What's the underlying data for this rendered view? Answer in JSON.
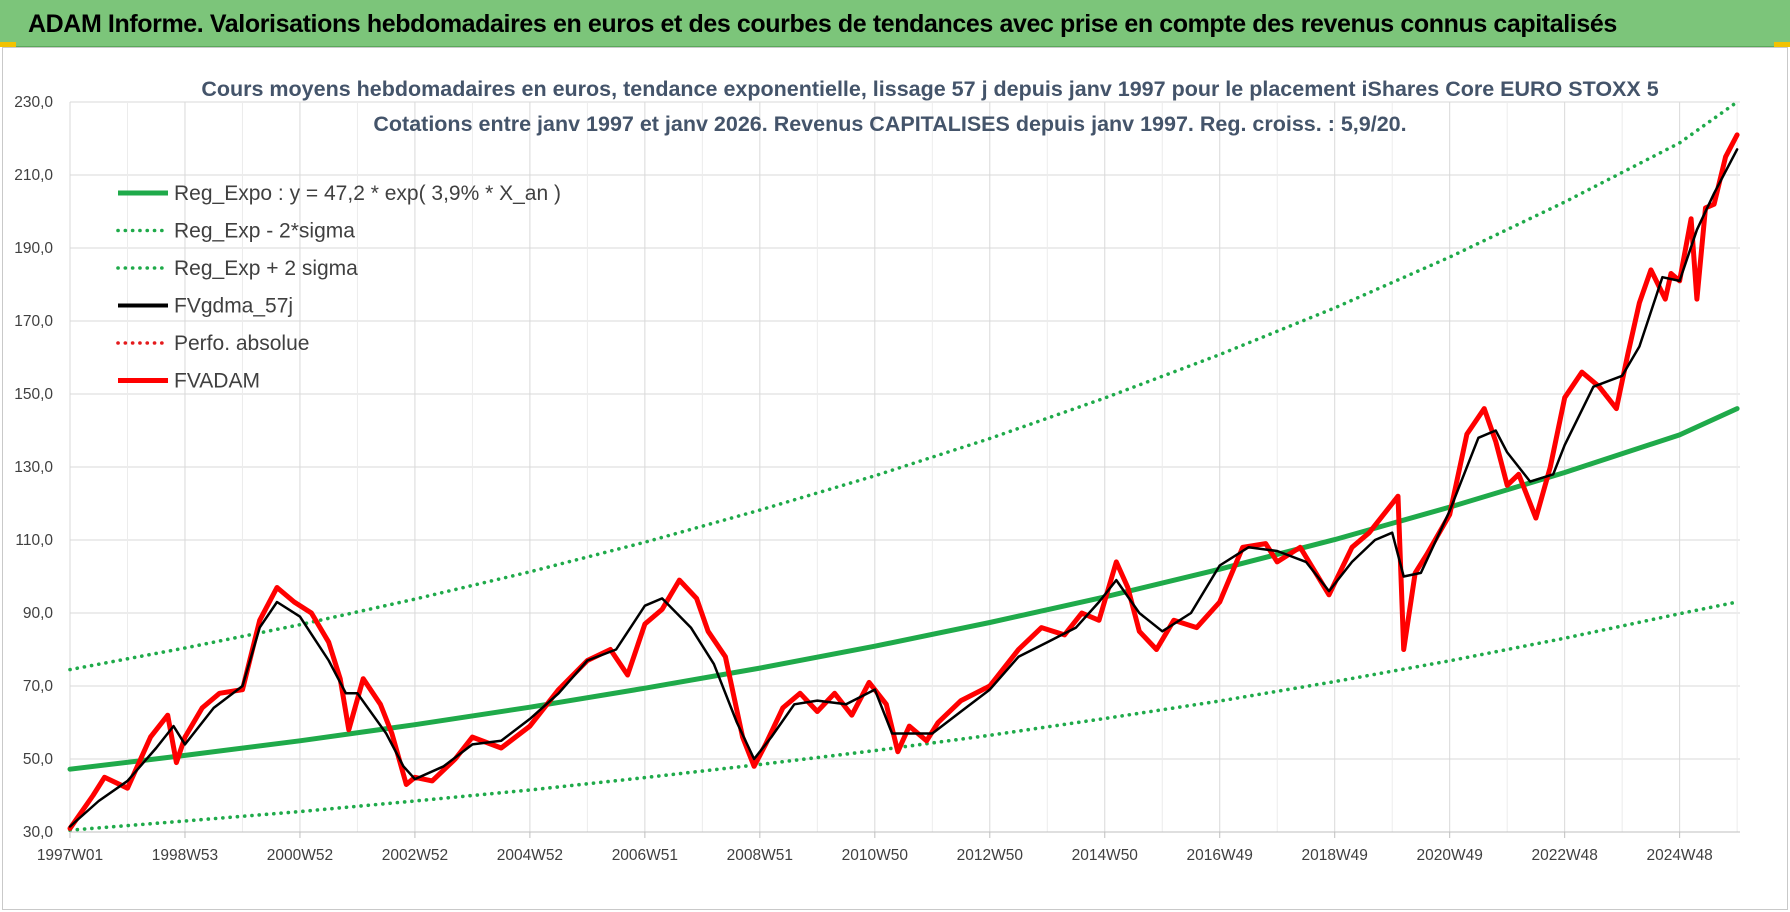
{
  "banner": {
    "title": "ADAM Informe. Valorisations hebdomadaires en euros et des courbes de tendances avec prise en compte des revenus connus capitalisés"
  },
  "chart_data": {
    "type": "line",
    "title_lines": [
      "Cours moyens hebdomadaires en euros, tendance exponentielle, lissage 57 j depuis janv 1997 pour le placement iShares Core EURO STOXX 5",
      "Cotations entre janv 1997 et janv 2026. Revenus CAPITALISES depuis janv 1997. Reg. croiss. : 5,9/20."
    ],
    "ylim": [
      30,
      230
    ],
    "y_ticks": [
      "30,0",
      "50,0",
      "70,0",
      "90,0",
      "110,0",
      "130,0",
      "150,0",
      "170,0",
      "190,0",
      "210,0",
      "230,0"
    ],
    "x_range_years": [
      1997.0,
      2026.05
    ],
    "x_ticks": [
      {
        "label": "1997W01",
        "year": 1997.0
      },
      {
        "label": "1998W53",
        "year": 1999.0
      },
      {
        "label": "2000W52",
        "year": 2001.0
      },
      {
        "label": "2002W52",
        "year": 2003.0
      },
      {
        "label": "2004W52",
        "year": 2005.0
      },
      {
        "label": "2006W51",
        "year": 2007.0
      },
      {
        "label": "2008W51",
        "year": 2009.0
      },
      {
        "label": "2010W50",
        "year": 2011.0
      },
      {
        "label": "2012W50",
        "year": 2013.0
      },
      {
        "label": "2014W50",
        "year": 2015.0
      },
      {
        "label": "2016W49",
        "year": 2017.0
      },
      {
        "label": "2018W49",
        "year": 2019.0
      },
      {
        "label": "2020W49",
        "year": 2021.0
      },
      {
        "label": "2022W48",
        "year": 2023.0
      },
      {
        "label": "2024W48",
        "year": 2025.0
      }
    ],
    "grid": true,
    "legend_position": "top-left",
    "series": [
      {
        "name": "Reg_Expo : y = 47,2 * exp( 3,9% *  X_an )",
        "color": "#1faa4a",
        "style": "solid-thick",
        "x": [
          1997,
          1999,
          2001,
          2003,
          2005,
          2007,
          2009,
          2011,
          2013,
          2015,
          2017,
          2019,
          2021,
          2023,
          2025,
          2026
        ],
        "y": [
          47.2,
          51.0,
          55.0,
          59.4,
          64.2,
          69.4,
          74.9,
          80.9,
          87.4,
          94.4,
          102.0,
          110.1,
          119.0,
          128.5,
          138.8,
          146.0
        ]
      },
      {
        "name": "Reg_Exp - 2*sigma",
        "color": "#1faa4a",
        "style": "dotted",
        "x": [
          1997,
          1999,
          2001,
          2003,
          2005,
          2007,
          2009,
          2011,
          2013,
          2015,
          2017,
          2019,
          2021,
          2023,
          2025,
          2026
        ],
        "y": [
          30.5,
          33.0,
          35.6,
          38.5,
          41.5,
          44.9,
          48.5,
          52.3,
          56.5,
          61.1,
          65.9,
          71.2,
          76.9,
          83.1,
          89.8,
          93.0
        ]
      },
      {
        "name": "Reg_Exp + 2 sigma",
        "color": "#1faa4a",
        "style": "dotted",
        "x": [
          1997,
          1999,
          2001,
          2003,
          2005,
          2007,
          2009,
          2011,
          2013,
          2015,
          2017,
          2019,
          2021,
          2023,
          2025,
          2026
        ],
        "y": [
          74.5,
          80.4,
          86.8,
          93.8,
          101.3,
          109.4,
          118.2,
          127.6,
          137.8,
          148.9,
          160.8,
          173.6,
          187.5,
          202.6,
          218.8,
          230.0
        ]
      },
      {
        "name": "FVgdma_57j",
        "color": "#000000",
        "style": "solid",
        "x": [
          1997.0,
          1997.5,
          1998.0,
          1998.5,
          1998.8,
          1999.0,
          1999.5,
          2000.0,
          2000.3,
          2000.6,
          2001.0,
          2001.5,
          2001.8,
          2002.0,
          2002.5,
          2002.8,
          2003.0,
          2003.5,
          2004.0,
          2004.5,
          2005.0,
          2005.5,
          2006.0,
          2006.5,
          2007.0,
          2007.3,
          2007.8,
          2008.2,
          2008.6,
          2008.9,
          2009.2,
          2009.6,
          2010.0,
          2010.5,
          2011.0,
          2011.3,
          2011.7,
          2012.0,
          2012.5,
          2013.0,
          2013.5,
          2014.0,
          2014.5,
          2014.9,
          2015.2,
          2015.6,
          2016.0,
          2016.5,
          2017.0,
          2017.5,
          2018.0,
          2018.5,
          2018.9,
          2019.3,
          2019.7,
          2020.0,
          2020.2,
          2020.5,
          2021.0,
          2021.5,
          2021.8,
          2022.0,
          2022.4,
          2022.8,
          2023.0,
          2023.5,
          2024.0,
          2024.3,
          2024.7,
          2025.0,
          2025.3,
          2025.6,
          2026.0
        ],
        "y": [
          31.5,
          38.5,
          44.0,
          53.0,
          59.0,
          54.0,
          64.0,
          70.0,
          86.0,
          93.0,
          89.0,
          77.0,
          68.0,
          68.0,
          57.0,
          48.0,
          44.5,
          48.0,
          54.0,
          55.0,
          61.0,
          68.0,
          77.0,
          80.0,
          92.0,
          94.0,
          86.0,
          76.0,
          60.0,
          50.0,
          56.0,
          65.0,
          66.0,
          65.0,
          69.0,
          57.0,
          57.0,
          57.0,
          63.0,
          69.0,
          78.0,
          82.0,
          86.0,
          93.0,
          99.0,
          90.0,
          85.0,
          90.0,
          103.0,
          108.0,
          107.0,
          104.0,
          96.0,
          104.0,
          110.0,
          112.0,
          100.0,
          101.0,
          118.0,
          138.0,
          140.0,
          134.0,
          126.0,
          128.0,
          136.0,
          152.0,
          155.0,
          163.0,
          182.0,
          181.0,
          195.0,
          205.0,
          217.0
        ]
      },
      {
        "name": "Perfo. absolue",
        "color": "#e41a1c",
        "style": "dotted",
        "x": [],
        "y": []
      },
      {
        "name": "FVADAM",
        "color": "#ff0000",
        "style": "solid-thick",
        "x": [
          1997.0,
          1997.4,
          1997.6,
          1998.0,
          1998.4,
          1998.7,
          1998.85,
          1999.0,
          1999.3,
          1999.6,
          2000.0,
          2000.3,
          2000.6,
          2000.9,
          2001.2,
          2001.5,
          2001.7,
          2001.85,
          2002.1,
          2002.4,
          2002.6,
          2002.85,
          2003.0,
          2003.3,
          2003.7,
          2004.0,
          2004.5,
          2005.0,
          2005.5,
          2006.0,
          2006.4,
          2006.7,
          2007.0,
          2007.3,
          2007.6,
          2007.9,
          2008.1,
          2008.4,
          2008.7,
          2008.9,
          2009.1,
          2009.4,
          2009.7,
          2010.0,
          2010.3,
          2010.6,
          2010.9,
          2011.2,
          2011.4,
          2011.6,
          2011.9,
          2012.1,
          2012.5,
          2013.0,
          2013.5,
          2013.9,
          2014.3,
          2014.6,
          2014.9,
          2015.2,
          2015.4,
          2015.6,
          2015.9,
          2016.2,
          2016.6,
          2017.0,
          2017.4,
          2017.8,
          2018.0,
          2018.4,
          2018.9,
          2019.3,
          2019.6,
          2019.9,
          2020.1,
          2020.2,
          2020.4,
          2020.6,
          2021.0,
          2021.3,
          2021.6,
          2021.8,
          2022.0,
          2022.2,
          2022.5,
          2022.75,
          2023.0,
          2023.3,
          2023.6,
          2023.9,
          2024.1,
          2024.3,
          2024.5,
          2024.75,
          2024.85,
          2025.0,
          2025.2,
          2025.3,
          2025.45,
          2025.6,
          2025.8,
          2026.0
        ],
        "y": [
          31.0,
          40.0,
          45.0,
          42.0,
          56.0,
          62.0,
          49.0,
          56.0,
          64.0,
          68.0,
          69.0,
          88.0,
          97.0,
          93.0,
          90.0,
          82.0,
          72.0,
          58.0,
          72.0,
          65.0,
          57.0,
          43.0,
          45.0,
          44.0,
          50.0,
          56.0,
          53.0,
          59.0,
          69.0,
          77.0,
          80.0,
          73.0,
          87.0,
          91.0,
          99.0,
          94.0,
          85.0,
          78.0,
          56.0,
          48.0,
          54.0,
          64.0,
          68.0,
          63.0,
          68.0,
          62.0,
          71.0,
          65.0,
          52.0,
          59.0,
          55.0,
          60.0,
          66.0,
          70.0,
          80.0,
          86.0,
          84.0,
          90.0,
          88.0,
          104.0,
          97.0,
          85.0,
          80.0,
          88.0,
          86.0,
          93.0,
          108.0,
          109.0,
          104.0,
          108.0,
          95.0,
          108.0,
          112.0,
          118.0,
          122.0,
          80.0,
          101.0,
          106.0,
          117.0,
          139.0,
          146.0,
          137.0,
          125.0,
          128.0,
          116.0,
          130.0,
          149.0,
          156.0,
          152.0,
          146.0,
          161.0,
          175.0,
          184.0,
          176.0,
          183.0,
          181.0,
          198.0,
          176.0,
          201.0,
          202.0,
          215.0,
          221.0
        ]
      }
    ]
  }
}
